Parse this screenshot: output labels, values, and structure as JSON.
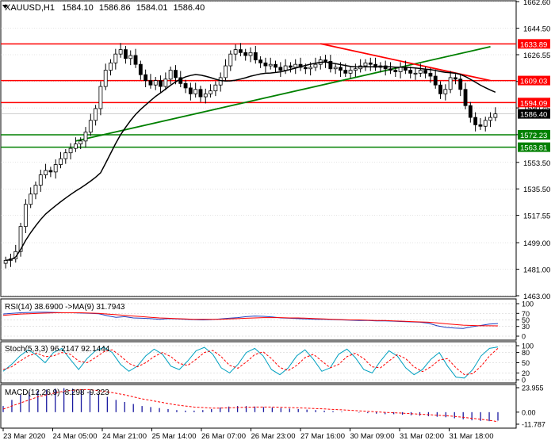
{
  "colors": {
    "background": "#ffffff",
    "frame": "#000000",
    "grid": "#c8c8c8",
    "resistance": "#ff0000",
    "support": "#008000",
    "candle": "#000000",
    "ma": "#000000",
    "rsi": "#1f3fbf",
    "signal": "#ff0000",
    "stoch_main": "#00a0c0",
    "macd_hist": "#1a1aa0"
  },
  "chart_data": [
    {
      "type": "candlestick",
      "title": "XAUUSD,H1",
      "header_values": [
        "1584.10",
        "1586.86",
        "1584.01",
        "1586.40"
      ],
      "ylim": [
        1463.0,
        1662.6
      ],
      "y_ticks": [
        "1662.60",
        "1644.50",
        "1626.55",
        "1608.40",
        "1590.45",
        "1572.30",
        "1553.50",
        "1535.50",
        "1517.55",
        "1499.00",
        "1481.00",
        "1463.00"
      ],
      "x_ticks": [
        "23 Mar 2020",
        "24 Mar 05:00",
        "24 Mar 21:00",
        "25 Mar 14:00",
        "26 Mar 07:00",
        "26 Mar 23:00",
        "27 Mar 16:00",
        "30 Mar 09:00",
        "31 Mar 02:00",
        "31 Mar 18:00"
      ],
      "horizontal_levels": [
        {
          "label": "1633.89",
          "value": 1633.89,
          "kind": "resistance"
        },
        {
          "label": "1609.03",
          "value": 1609.03,
          "kind": "resistance"
        },
        {
          "label": "1594.09",
          "value": 1594.09,
          "kind": "resistance"
        },
        {
          "label": "1572.23",
          "value": 1572.23,
          "kind": "support"
        },
        {
          "label": "1563.81",
          "value": 1563.81,
          "kind": "support"
        }
      ],
      "current_price": {
        "label": "1586.40",
        "value": 1586.4
      },
      "trend_lines": [
        {
          "kind": "support",
          "from": [
            14,
            1568
          ],
          "to": [
            97,
            1632
          ]
        },
        {
          "kind": "resistance",
          "from": [
            63,
            1634
          ],
          "to": [
            97,
            1609
          ]
        }
      ],
      "close": [
        1487,
        1488,
        1493,
        1510,
        1525,
        1532,
        1538,
        1545,
        1548,
        1547,
        1552,
        1556,
        1560,
        1563,
        1566,
        1568,
        1574,
        1582,
        1590,
        1605,
        1616,
        1621,
        1627,
        1630,
        1624,
        1626,
        1620,
        1613,
        1609,
        1606,
        1609,
        1605,
        1610,
        1616,
        1611,
        1607,
        1604,
        1600,
        1603,
        1598,
        1600,
        1602,
        1606,
        1611,
        1619,
        1627,
        1630,
        1628,
        1626,
        1628,
        1623,
        1621,
        1619,
        1620,
        1618,
        1616,
        1619,
        1618,
        1620,
        1618,
        1617,
        1618,
        1620,
        1623,
        1622,
        1617,
        1618,
        1616,
        1614,
        1616,
        1617,
        1619,
        1621,
        1620,
        1618,
        1619,
        1617,
        1616,
        1615,
        1618,
        1616,
        1614,
        1614,
        1616,
        1614,
        1612,
        1606,
        1600,
        1603,
        1611,
        1610,
        1603,
        1592,
        1584,
        1579,
        1578,
        1582,
        1584,
        1586.4
      ],
      "ma_period": 20
    },
    {
      "type": "line",
      "title": "RSI(14) 38.6900  ->MA(9) 31.7943",
      "ylim": [
        0,
        100
      ],
      "y_ticks": [
        "100",
        "70",
        "50",
        "30",
        "0"
      ],
      "series": [
        {
          "name": "RSI(14)",
          "values": [
            68,
            70,
            72,
            73,
            74,
            74,
            73,
            72,
            72,
            71,
            70,
            69,
            63,
            58,
            60,
            56,
            55,
            54,
            52,
            54,
            53,
            52,
            51,
            50,
            51,
            53,
            55,
            57,
            60,
            62,
            61,
            59,
            56,
            55,
            54,
            53,
            52,
            52,
            51,
            50,
            49,
            48,
            48,
            47,
            47,
            46,
            45,
            44,
            43,
            40,
            32,
            27,
            25,
            24,
            29,
            33,
            37,
            38.69
          ]
        },
        {
          "name": "MA(9)",
          "values": [
            64,
            66,
            68,
            69,
            70,
            71,
            72,
            72,
            72,
            72,
            71,
            70,
            68,
            66,
            64,
            62,
            60,
            58,
            56,
            55,
            54,
            53,
            52,
            52,
            52,
            52,
            53,
            54,
            55,
            56,
            57,
            57,
            57,
            56,
            56,
            55,
            54,
            53,
            52,
            51,
            50,
            50,
            49,
            48,
            48,
            47,
            46,
            45,
            44,
            43,
            41,
            38,
            36,
            34,
            33,
            32,
            31.9,
            31.79
          ]
        }
      ]
    },
    {
      "type": "line",
      "title": "Stoch(5,3,3) 96.2147 92.1444",
      "ylim": [
        0,
        100
      ],
      "y_ticks": [
        "100",
        "80",
        "50",
        "20",
        "0"
      ],
      "series": [
        {
          "name": "%K",
          "values": [
            25,
            45,
            70,
            88,
            72,
            50,
            80,
            92,
            60,
            30,
            62,
            85,
            95,
            80,
            45,
            25,
            40,
            70,
            90,
            75,
            40,
            30,
            55,
            85,
            95,
            75,
            35,
            20,
            45,
            80,
            92,
            70,
            30,
            15,
            35,
            70,
            88,
            60,
            25,
            35,
            75,
            90,
            65,
            30,
            20,
            55,
            85,
            70,
            35,
            15,
            30,
            60,
            80,
            40,
            8,
            5,
            30,
            70,
            92,
            96.21
          ]
        },
        {
          "name": "%D",
          "values": [
            30,
            38,
            55,
            70,
            78,
            68,
            70,
            80,
            75,
            55,
            50,
            65,
            82,
            88,
            70,
            48,
            38,
            50,
            68,
            80,
            68,
            48,
            42,
            60,
            80,
            86,
            68,
            42,
            34,
            52,
            74,
            82,
            62,
            36,
            27,
            42,
            65,
            75,
            55,
            35,
            45,
            68,
            78,
            62,
            38,
            35,
            55,
            74,
            62,
            38,
            24,
            38,
            58,
            62,
            35,
            15,
            18,
            40,
            70,
            92.14
          ]
        }
      ]
    },
    {
      "type": "bar",
      "title": "MACD(12,26,9) -8.298 -9.323",
      "ylim": [
        -11.787,
        23.955
      ],
      "y_ticks": [
        "23.955",
        "0.00",
        "-11.787"
      ],
      "series": [
        {
          "name": "MACD",
          "values": [
            6,
            12,
            17,
            20,
            21,
            22,
            23,
            23.5,
            23,
            22,
            21,
            18,
            15,
            12,
            10,
            8,
            6,
            5,
            4,
            3,
            2,
            1.5,
            1.5,
            2,
            3,
            4.5,
            5.5,
            6,
            6,
            5.5,
            5,
            4.5,
            4,
            3.5,
            3,
            2.5,
            2,
            1.5,
            1,
            0.5,
            0,
            -0.5,
            -1,
            -1.5,
            -2,
            -2,
            -2.5,
            -3,
            -3.5,
            -4,
            -4.5,
            -5,
            -6,
            -7,
            -8,
            -8.5,
            -8.8,
            -8.3
          ]
        },
        {
          "name": "Signal",
          "values": [
            3,
            6,
            9,
            12,
            15,
            17,
            19,
            20.5,
            21.5,
            22,
            22,
            21,
            20,
            18.5,
            17,
            15,
            13,
            11.5,
            10,
            8.5,
            7,
            6,
            5,
            4.5,
            4,
            4,
            4.2,
            4.5,
            4.8,
            5,
            5,
            5,
            4.8,
            4.5,
            4.2,
            3.9,
            3.5,
            3.1,
            2.7,
            2.3,
            1.8,
            1.3,
            0.8,
            0.3,
            -0.2,
            -0.6,
            -1,
            -1.5,
            -2,
            -2.5,
            -3,
            -3.5,
            -4.2,
            -5,
            -6,
            -7,
            -8,
            -9.32
          ]
        }
      ]
    }
  ]
}
